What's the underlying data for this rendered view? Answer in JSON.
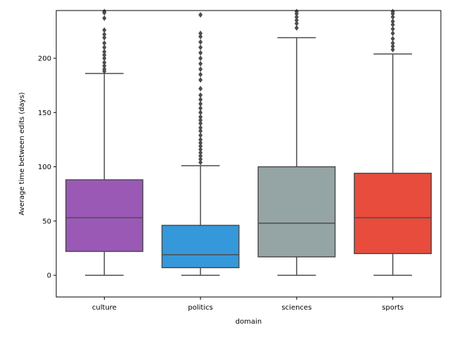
{
  "chart_data": {
    "type": "box",
    "xlabel": "domain",
    "ylabel": "Average time between edits (days)",
    "ylim": [
      -20,
      244
    ],
    "yticks": [
      0,
      50,
      100,
      150,
      200
    ],
    "grid": false,
    "categories": [
      "culture",
      "politics",
      "sciences",
      "sports"
    ],
    "boxes": [
      {
        "category": "culture",
        "color": "#9b59b6",
        "whisker_low": 0,
        "q1": 22,
        "median": 53,
        "q3": 88,
        "whisker_high": 186,
        "outliers": [
          188,
          190,
          193,
          196,
          200,
          203,
          206,
          210,
          214,
          219,
          222,
          226,
          237,
          242,
          243
        ]
      },
      {
        "category": "politics",
        "color": "#3498db",
        "whisker_low": 0,
        "q1": 7,
        "median": 19,
        "q3": 46,
        "whisker_high": 101,
        "outliers": [
          104,
          107,
          110,
          113,
          116,
          119,
          122,
          125,
          129,
          133,
          136,
          140,
          143,
          146,
          150,
          154,
          158,
          162,
          166,
          172,
          180,
          185,
          190,
          195,
          200,
          205,
          210,
          215,
          220,
          223,
          240
        ]
      },
      {
        "category": "sciences",
        "color": "#95a5a6",
        "whisker_low": 0,
        "q1": 17,
        "median": 48,
        "q3": 100,
        "whisker_high": 219,
        "outliers": [
          228,
          232,
          235,
          238,
          241,
          243
        ]
      },
      {
        "category": "sports",
        "color": "#e74c3c",
        "whisker_low": 0,
        "q1": 20,
        "median": 53,
        "q3": 94,
        "whisker_high": 204,
        "outliers": [
          208,
          211,
          214,
          218,
          223,
          227,
          231,
          234,
          238,
          241,
          243
        ]
      }
    ],
    "line_color": "#4d4d4d"
  }
}
